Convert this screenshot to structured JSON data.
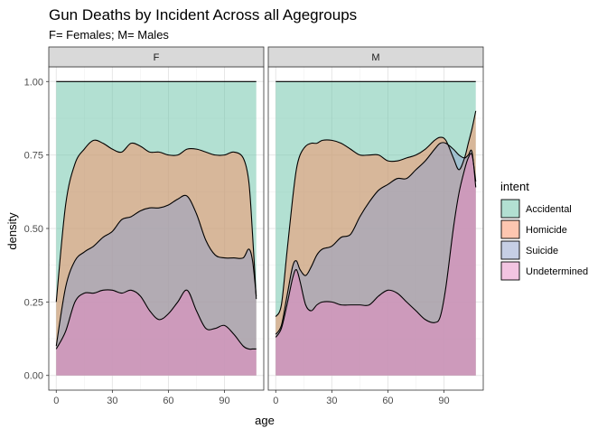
{
  "chart_data": {
    "type": "area",
    "title": "Gun Deaths by Incident Across all Agegroups",
    "subtitle": "F= Females; M= Males",
    "xlabel": "age",
    "ylabel": "density",
    "xlim": [
      -4,
      111
    ],
    "ylim": [
      -0.05,
      1.05
    ],
    "x_ticks": [
      0,
      30,
      60,
      90
    ],
    "y_ticks": [
      0.0,
      0.25,
      0.5,
      0.75,
      1.0
    ],
    "x_tick_labels": [
      "0",
      "30",
      "60",
      "90"
    ],
    "y_tick_labels": [
      "0.00",
      "0.25",
      "0.50",
      "0.75",
      "1.00"
    ],
    "position": "fill",
    "grid": true,
    "legend_position": "right",
    "legend": {
      "title": "intent",
      "items": [
        {
          "label": "Accidental",
          "color": "#66C2A5"
        },
        {
          "label": "Homicide",
          "color": "#FC8D62"
        },
        {
          "label": "Suicide",
          "color": "#8DA0CB"
        },
        {
          "label": "Undetermined",
          "color": "#E78AC3"
        }
      ]
    },
    "series_order_bottom_to_top": [
      "Undetermined",
      "Suicide",
      "Homicide",
      "Accidental"
    ],
    "panels": [
      {
        "label": "F",
        "x": [
          0,
          5,
          10,
          15,
          20,
          25,
          30,
          35,
          40,
          45,
          50,
          55,
          60,
          65,
          70,
          75,
          80,
          85,
          90,
          95,
          100,
          103,
          105,
          107
        ],
        "cumulative": {
          "Undetermined": [
            0.09,
            0.15,
            0.25,
            0.28,
            0.28,
            0.29,
            0.29,
            0.28,
            0.29,
            0.27,
            0.22,
            0.19,
            0.21,
            0.25,
            0.29,
            0.22,
            0.16,
            0.16,
            0.17,
            0.14,
            0.1,
            0.09,
            0.09,
            0.09
          ],
          "Suicide": [
            0.1,
            0.3,
            0.39,
            0.42,
            0.44,
            0.47,
            0.49,
            0.53,
            0.54,
            0.56,
            0.57,
            0.57,
            0.58,
            0.6,
            0.61,
            0.55,
            0.46,
            0.41,
            0.4,
            0.4,
            0.4,
            0.43,
            0.39,
            0.27
          ],
          "Homicide": [
            0.25,
            0.58,
            0.72,
            0.77,
            0.8,
            0.79,
            0.77,
            0.76,
            0.79,
            0.78,
            0.76,
            0.76,
            0.75,
            0.75,
            0.77,
            0.77,
            0.76,
            0.75,
            0.75,
            0.76,
            0.74,
            0.66,
            0.48,
            0.26
          ],
          "Accidental": [
            1.0,
            1.0,
            1.0,
            1.0,
            1.0,
            1.0,
            1.0,
            1.0,
            1.0,
            1.0,
            1.0,
            1.0,
            1.0,
            1.0,
            1.0,
            1.0,
            1.0,
            1.0,
            1.0,
            1.0,
            1.0,
            1.0,
            1.0,
            1.0
          ]
        }
      },
      {
        "label": "M",
        "x": [
          0,
          3,
          6,
          9,
          11,
          13,
          16,
          19,
          22,
          25,
          30,
          35,
          40,
          45,
          50,
          55,
          60,
          65,
          70,
          75,
          80,
          85,
          88,
          91,
          95,
          98,
          101,
          103,
          105,
          107
        ],
        "cumulative": {
          "Undetermined": [
            0.13,
            0.16,
            0.24,
            0.33,
            0.36,
            0.32,
            0.24,
            0.22,
            0.24,
            0.25,
            0.25,
            0.24,
            0.24,
            0.24,
            0.24,
            0.27,
            0.29,
            0.28,
            0.25,
            0.22,
            0.19,
            0.18,
            0.2,
            0.3,
            0.5,
            0.62,
            0.7,
            0.74,
            0.75,
            0.66
          ],
          "Suicide": [
            0.14,
            0.17,
            0.27,
            0.37,
            0.39,
            0.36,
            0.34,
            0.37,
            0.41,
            0.43,
            0.44,
            0.47,
            0.48,
            0.54,
            0.59,
            0.63,
            0.65,
            0.67,
            0.67,
            0.7,
            0.73,
            0.77,
            0.79,
            0.79,
            0.77,
            0.75,
            0.74,
            0.75,
            0.76,
            0.64
          ],
          "Homicide": [
            0.2,
            0.24,
            0.42,
            0.6,
            0.7,
            0.75,
            0.78,
            0.79,
            0.79,
            0.8,
            0.8,
            0.79,
            0.77,
            0.75,
            0.75,
            0.75,
            0.73,
            0.73,
            0.74,
            0.75,
            0.77,
            0.8,
            0.81,
            0.8,
            0.74,
            0.7,
            0.74,
            0.79,
            0.84,
            0.9
          ],
          "Accidental": [
            1.0,
            1.0,
            1.0,
            1.0,
            1.0,
            1.0,
            1.0,
            1.0,
            1.0,
            1.0,
            1.0,
            1.0,
            1.0,
            1.0,
            1.0,
            1.0,
            1.0,
            1.0,
            1.0,
            1.0,
            1.0,
            1.0,
            1.0,
            1.0,
            1.0,
            1.0,
            1.0,
            1.0,
            1.0,
            1.0
          ]
        }
      }
    ]
  }
}
